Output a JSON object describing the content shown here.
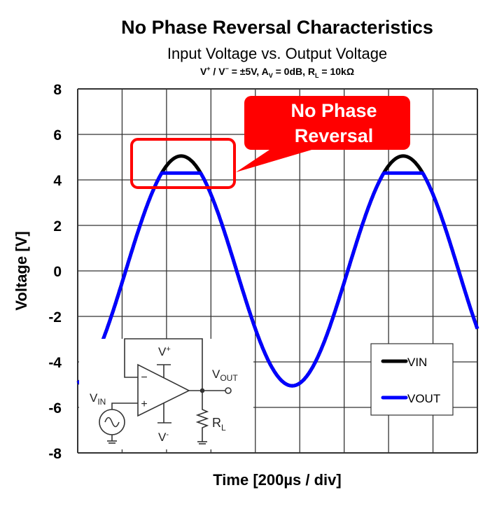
{
  "chart_data": {
    "type": "line",
    "title": "No Phase Reversal Characteristics",
    "subtitle": "Input Voltage vs. Output Voltage",
    "conditions": {
      "vsupply_main": "V",
      "vsupply_plus_sup": "+",
      "vsupply_sep": " / V",
      "vsupply_minus_sup": "−",
      "vsupply_val": " = ±5V, A",
      "gain_sub": "V",
      "gain_val": " = 0dB, R",
      "rl_sub": "L",
      "rl_val": " = 10kΩ"
    },
    "xlabel": "Time [200µs / div]",
    "ylabel": "Voltage [V]",
    "ylim": [
      -8,
      8
    ],
    "yticks": [
      "8",
      "6",
      "4",
      "2",
      "0",
      "-2",
      "-4",
      "-6",
      "-8"
    ],
    "ytick_values": [
      8,
      6,
      4,
      2,
      0,
      -2,
      -4,
      -6,
      -8
    ],
    "x_divisions": 9,
    "time_per_div_us": 200,
    "grid": true,
    "legend_position": "bottom-right",
    "series": [
      {
        "name": "VIN",
        "color": "#000000",
        "model": {
          "amplitude_v": 5.05,
          "frequency_hz": 1000,
          "zero_cross_us": 216
        }
      },
      {
        "name": "VOUT",
        "color": "#0000ff",
        "model": {
          "amplitude_v": 5.05,
          "frequency_hz": 1000,
          "zero_cross_us": 216,
          "clip_high_v": 4.3
        }
      }
    ],
    "sample_time_us": [
      0,
      100,
      200,
      300,
      400,
      500,
      600,
      700,
      800,
      900,
      1000,
      1100,
      1200,
      1300,
      1400,
      1500,
      1600,
      1700,
      1800
    ],
    "sample_vin": [
      -4.93,
      -3.36,
      -0.51,
      2.54,
      4.62,
      4.93,
      3.36,
      0.51,
      -2.54,
      -4.62,
      -4.93,
      -3.36,
      -0.51,
      2.54,
      4.62,
      4.93,
      3.36,
      0.51,
      -2.54
    ],
    "sample_vout": [
      -4.93,
      -3.36,
      -0.51,
      2.54,
      4.3,
      4.3,
      3.36,
      0.51,
      -2.54,
      -4.62,
      -4.93,
      -3.36,
      -0.51,
      2.54,
      4.3,
      4.3,
      3.36,
      0.51,
      -2.54
    ],
    "annotation": {
      "line1": "No Phase",
      "line2": "Reversal",
      "color": "#ff0000"
    },
    "circuit": {
      "vplus": "V",
      "vplus_sup": "+",
      "vminus": "V",
      "vminus_sup": "-",
      "vout": "V",
      "vout_sub": "OUT",
      "vin": "V",
      "vin_sub": "IN",
      "rl": "R",
      "rl_sub": "L",
      "minus_sign": "−",
      "plus_sign": "+"
    }
  }
}
